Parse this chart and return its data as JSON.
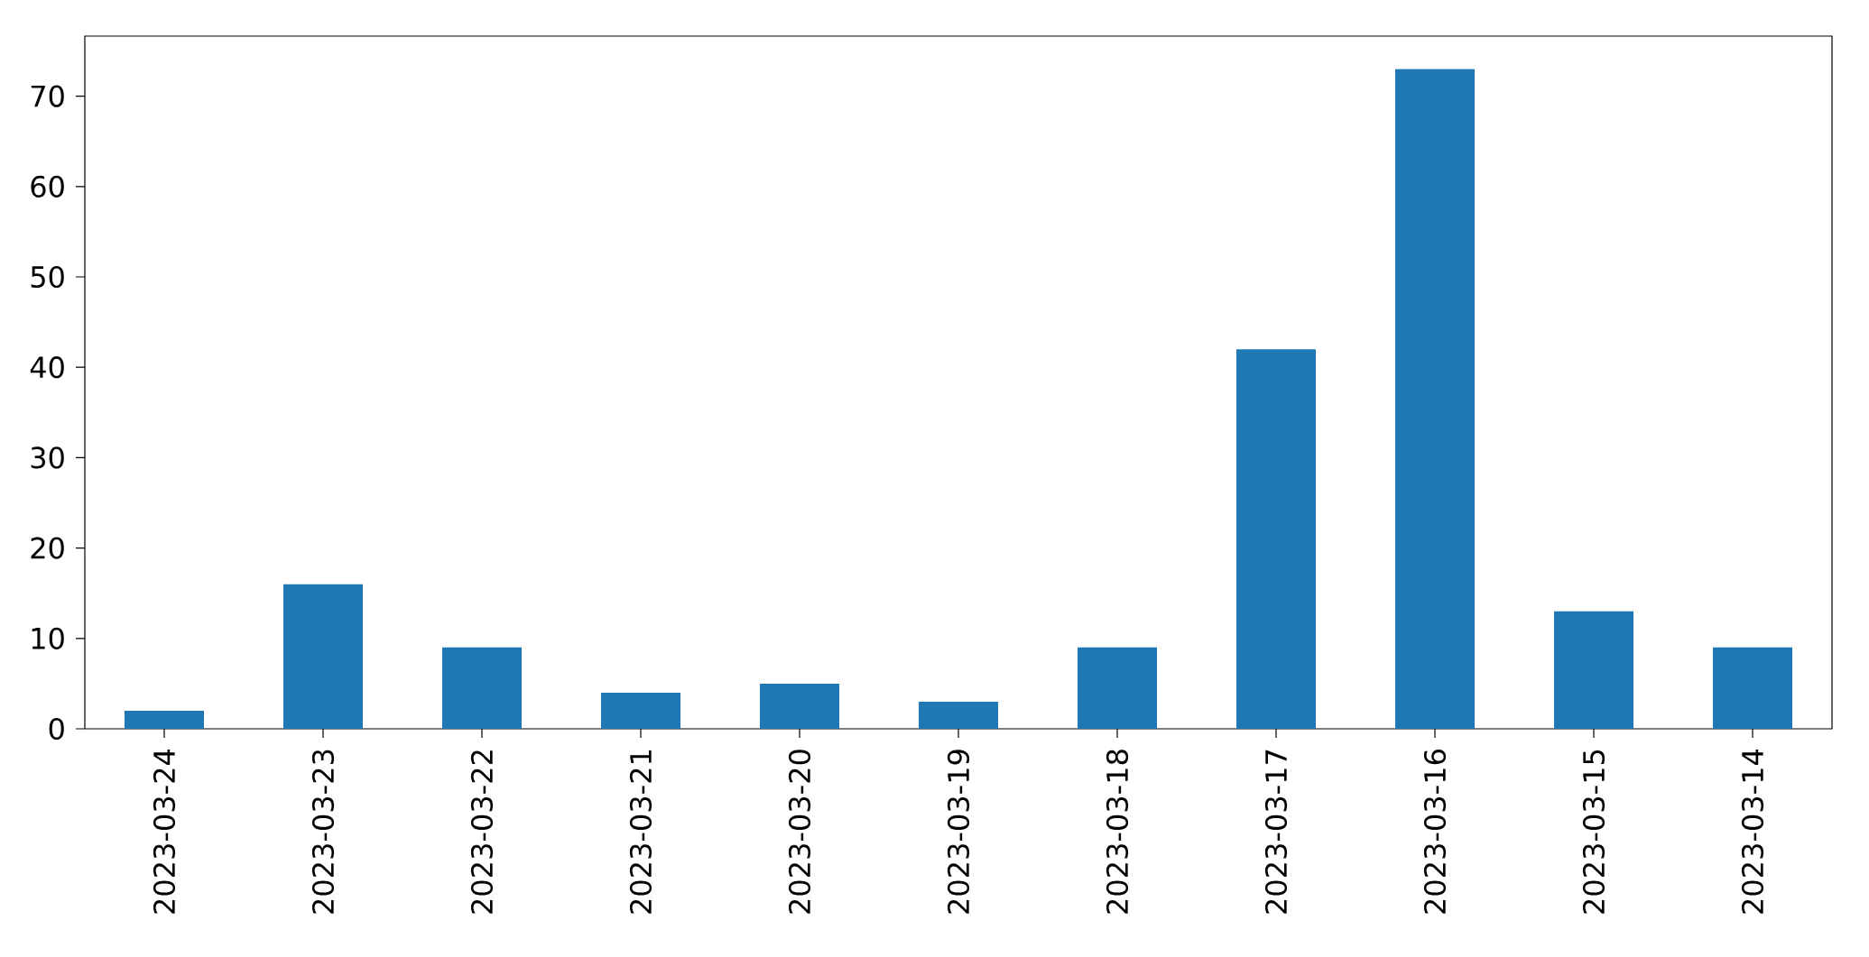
{
  "chart_data": {
    "type": "bar",
    "categories": [
      "2023-03-24",
      "2023-03-23",
      "2023-03-22",
      "2023-03-21",
      "2023-03-20",
      "2023-03-19",
      "2023-03-18",
      "2023-03-17",
      "2023-03-16",
      "2023-03-15",
      "2023-03-14"
    ],
    "values": [
      2,
      16,
      9,
      4,
      5,
      3,
      9,
      42,
      73,
      13,
      9
    ],
    "color": "#1f77b4",
    "ylim": [
      0,
      76.65
    ],
    "yticks": [
      0,
      10,
      20,
      30,
      40,
      50,
      60,
      70
    ],
    "grid": false
  }
}
